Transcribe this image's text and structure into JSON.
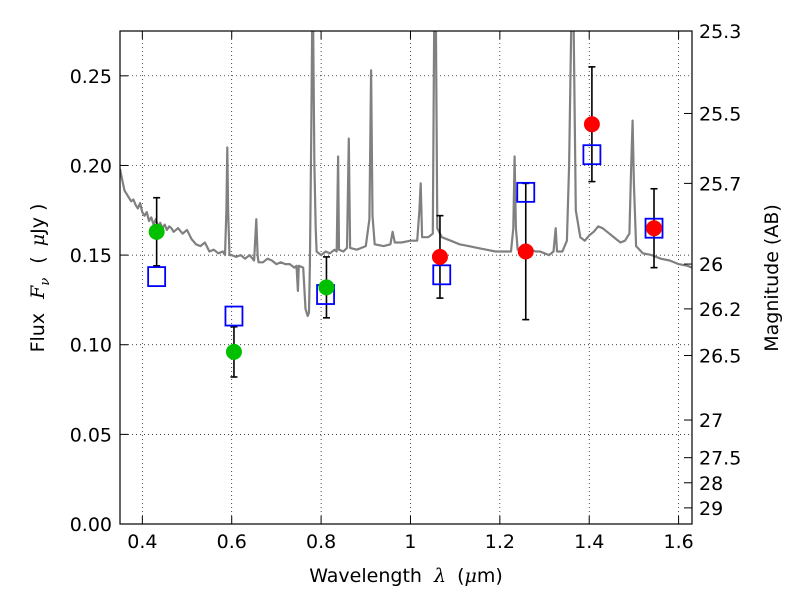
{
  "chart_data": {
    "type": "scatter",
    "xlabel_prefix": "Wavelength",
    "xlabel_symbol": "λ",
    "xlabel_unit_open": "(",
    "xlabel_unit_mu": "μ",
    "xlabel_unit_rest": "m)",
    "ylabel_prefix": "Flux",
    "ylabel_symbol": "F",
    "ylabel_subscript": "ν",
    "ylabel_unit_open": "(",
    "ylabel_unit_mu": "μ",
    "ylabel_unit_rest": "Jy )",
    "y2label": "Magnitude (AB)",
    "xlim": [
      0.35,
      1.63
    ],
    "ylim": [
      0.0,
      0.275
    ],
    "x_ticks": [
      0.4,
      0.6,
      0.8,
      1.0,
      1.2,
      1.4,
      1.6
    ],
    "x_tick_labels": [
      "0.4",
      "0.6",
      "0.8",
      "1",
      "1.2",
      "1.4",
      "1.6"
    ],
    "y_ticks": [
      0.0,
      0.05,
      0.1,
      0.15,
      0.2,
      0.25
    ],
    "y_tick_labels": [
      "0.00",
      "0.05",
      "0.10",
      "0.15",
      "0.20",
      "0.25"
    ],
    "mag_ticks": [
      {
        "flux": 0.275,
        "label": "25.3"
      },
      {
        "flux": 0.229,
        "label": "25.5"
      },
      {
        "flux": 0.19,
        "label": "25.7"
      },
      {
        "flux": 0.145,
        "label": "26"
      },
      {
        "flux": 0.12,
        "label": "26.2"
      },
      {
        "flux": 0.094,
        "label": "26.5"
      },
      {
        "flux": 0.058,
        "label": "27"
      },
      {
        "flux": 0.037,
        "label": "27.5"
      },
      {
        "flux": 0.023,
        "label": "28"
      },
      {
        "flux": 0.009,
        "label": "29"
      }
    ],
    "grid": true,
    "grid_style": "dotted",
    "series": [
      {
        "kind": "spectrum_line",
        "color": "#808080",
        "points": [
          [
            0.35,
            0.198
          ],
          [
            0.355,
            0.192
          ],
          [
            0.36,
            0.186
          ],
          [
            0.365,
            0.184
          ],
          [
            0.37,
            0.182
          ],
          [
            0.375,
            0.18
          ],
          [
            0.38,
            0.181
          ],
          [
            0.385,
            0.178
          ],
          [
            0.39,
            0.176
          ],
          [
            0.395,
            0.179
          ],
          [
            0.4,
            0.174
          ],
          [
            0.405,
            0.172
          ],
          [
            0.41,
            0.174
          ],
          [
            0.415,
            0.169
          ],
          [
            0.42,
            0.171
          ],
          [
            0.425,
            0.167
          ],
          [
            0.43,
            0.17
          ],
          [
            0.435,
            0.166
          ],
          [
            0.44,
            0.168
          ],
          [
            0.445,
            0.165
          ],
          [
            0.45,
            0.167
          ],
          [
            0.455,
            0.164
          ],
          [
            0.46,
            0.166
          ],
          [
            0.465,
            0.165
          ],
          [
            0.47,
            0.163
          ],
          [
            0.48,
            0.165
          ],
          [
            0.49,
            0.162
          ],
          [
            0.5,
            0.164
          ],
          [
            0.51,
            0.159
          ],
          [
            0.52,
            0.156
          ],
          [
            0.53,
            0.155
          ],
          [
            0.54,
            0.157
          ],
          [
            0.55,
            0.152
          ],
          [
            0.56,
            0.153
          ],
          [
            0.57,
            0.151
          ],
          [
            0.58,
            0.152
          ],
          [
            0.585,
            0.15
          ],
          [
            0.588,
            0.175
          ],
          [
            0.59,
            0.21
          ],
          [
            0.592,
            0.175
          ],
          [
            0.595,
            0.15
          ],
          [
            0.6,
            0.15
          ],
          [
            0.61,
            0.149
          ],
          [
            0.62,
            0.15
          ],
          [
            0.63,
            0.148
          ],
          [
            0.64,
            0.15
          ],
          [
            0.65,
            0.147
          ],
          [
            0.655,
            0.17
          ],
          [
            0.658,
            0.15
          ],
          [
            0.66,
            0.146
          ],
          [
            0.67,
            0.146
          ],
          [
            0.68,
            0.148
          ],
          [
            0.69,
            0.147
          ],
          [
            0.7,
            0.145
          ],
          [
            0.71,
            0.146
          ],
          [
            0.72,
            0.145
          ],
          [
            0.73,
            0.145
          ],
          [
            0.74,
            0.143
          ],
          [
            0.745,
            0.144
          ],
          [
            0.748,
            0.13
          ],
          [
            0.75,
            0.144
          ],
          [
            0.76,
            0.143
          ],
          [
            0.765,
            0.12
          ],
          [
            0.77,
            0.116
          ],
          [
            0.773,
            0.118
          ],
          [
            0.775,
            0.145
          ],
          [
            0.778,
            0.22
          ],
          [
            0.78,
            0.28
          ],
          [
            0.782,
            0.28
          ],
          [
            0.785,
            0.2
          ],
          [
            0.788,
            0.165
          ],
          [
            0.79,
            0.152
          ],
          [
            0.8,
            0.15
          ],
          [
            0.81,
            0.152
          ],
          [
            0.82,
            0.151
          ],
          [
            0.83,
            0.153
          ],
          [
            0.835,
            0.152
          ],
          [
            0.838,
            0.205
          ],
          [
            0.84,
            0.153
          ],
          [
            0.85,
            0.152
          ],
          [
            0.858,
            0.154
          ],
          [
            0.862,
            0.215
          ],
          [
            0.865,
            0.154
          ],
          [
            0.88,
            0.153
          ],
          [
            0.9,
            0.155
          ],
          [
            0.908,
            0.17
          ],
          [
            0.912,
            0.253
          ],
          [
            0.915,
            0.172
          ],
          [
            0.92,
            0.156
          ],
          [
            0.94,
            0.155
          ],
          [
            0.955,
            0.156
          ],
          [
            0.96,
            0.163
          ],
          [
            0.965,
            0.157
          ],
          [
            0.98,
            0.157
          ],
          [
            1.0,
            0.158
          ],
          [
            1.015,
            0.158
          ],
          [
            1.02,
            0.175
          ],
          [
            1.023,
            0.19
          ],
          [
            1.026,
            0.16
          ],
          [
            1.04,
            0.16
          ],
          [
            1.05,
            0.162
          ],
          [
            1.053,
            0.28
          ],
          [
            1.057,
            0.28
          ],
          [
            1.06,
            0.165
          ],
          [
            1.07,
            0.16
          ],
          [
            1.09,
            0.158
          ],
          [
            1.11,
            0.156
          ],
          [
            1.13,
            0.155
          ],
          [
            1.15,
            0.154
          ],
          [
            1.17,
            0.153
          ],
          [
            1.19,
            0.152
          ],
          [
            1.21,
            0.152
          ],
          [
            1.225,
            0.152
          ],
          [
            1.23,
            0.165
          ],
          [
            1.233,
            0.205
          ],
          [
            1.236,
            0.165
          ],
          [
            1.24,
            0.153
          ],
          [
            1.26,
            0.154
          ],
          [
            1.28,
            0.152
          ],
          [
            1.29,
            0.152
          ],
          [
            1.3,
            0.151
          ],
          [
            1.31,
            0.15
          ],
          [
            1.32,
            0.152
          ],
          [
            1.325,
            0.165
          ],
          [
            1.328,
            0.152
          ],
          [
            1.34,
            0.152
          ],
          [
            1.35,
            0.158
          ],
          [
            1.355,
            0.2
          ],
          [
            1.36,
            0.28
          ],
          [
            1.365,
            0.28
          ],
          [
            1.37,
            0.175
          ],
          [
            1.38,
            0.16
          ],
          [
            1.39,
            0.158
          ],
          [
            1.4,
            0.161
          ],
          [
            1.41,
            0.163
          ],
          [
            1.42,
            0.166
          ],
          [
            1.43,
            0.165
          ],
          [
            1.44,
            0.163
          ],
          [
            1.45,
            0.161
          ],
          [
            1.46,
            0.159
          ],
          [
            1.47,
            0.157
          ],
          [
            1.48,
            0.158
          ],
          [
            1.49,
            0.162
          ],
          [
            1.494,
            0.2
          ],
          [
            1.497,
            0.225
          ],
          [
            1.5,
            0.19
          ],
          [
            1.505,
            0.155
          ],
          [
            1.52,
            0.151
          ],
          [
            1.54,
            0.15
          ],
          [
            1.56,
            0.148
          ],
          [
            1.58,
            0.147
          ],
          [
            1.6,
            0.145
          ],
          [
            1.62,
            0.144
          ],
          [
            1.63,
            0.143
          ]
        ]
      },
      {
        "kind": "model_squares",
        "color": "#0000ff",
        "points": [
          [
            0.432,
            0.138
          ],
          [
            0.605,
            0.116
          ],
          [
            0.81,
            0.128
          ],
          [
            1.07,
            0.139
          ],
          [
            1.258,
            0.185
          ],
          [
            1.406,
            0.206
          ],
          [
            1.545,
            0.165
          ]
        ]
      },
      {
        "kind": "observed_points",
        "color": "#00c000",
        "points": [
          {
            "x": 0.432,
            "y": 0.163,
            "err": 0.019
          },
          {
            "x": 0.605,
            "y": 0.096,
            "err": 0.014
          },
          {
            "x": 0.812,
            "y": 0.132,
            "err": 0.017
          }
        ]
      },
      {
        "kind": "observed_points",
        "color": "#ff0000",
        "points": [
          {
            "x": 1.066,
            "y": 0.149,
            "err": 0.023
          },
          {
            "x": 1.258,
            "y": 0.152,
            "err": 0.038
          },
          {
            "x": 1.406,
            "y": 0.223,
            "err": 0.032
          },
          {
            "x": 1.545,
            "y": 0.165,
            "err": 0.022
          }
        ]
      }
    ]
  }
}
